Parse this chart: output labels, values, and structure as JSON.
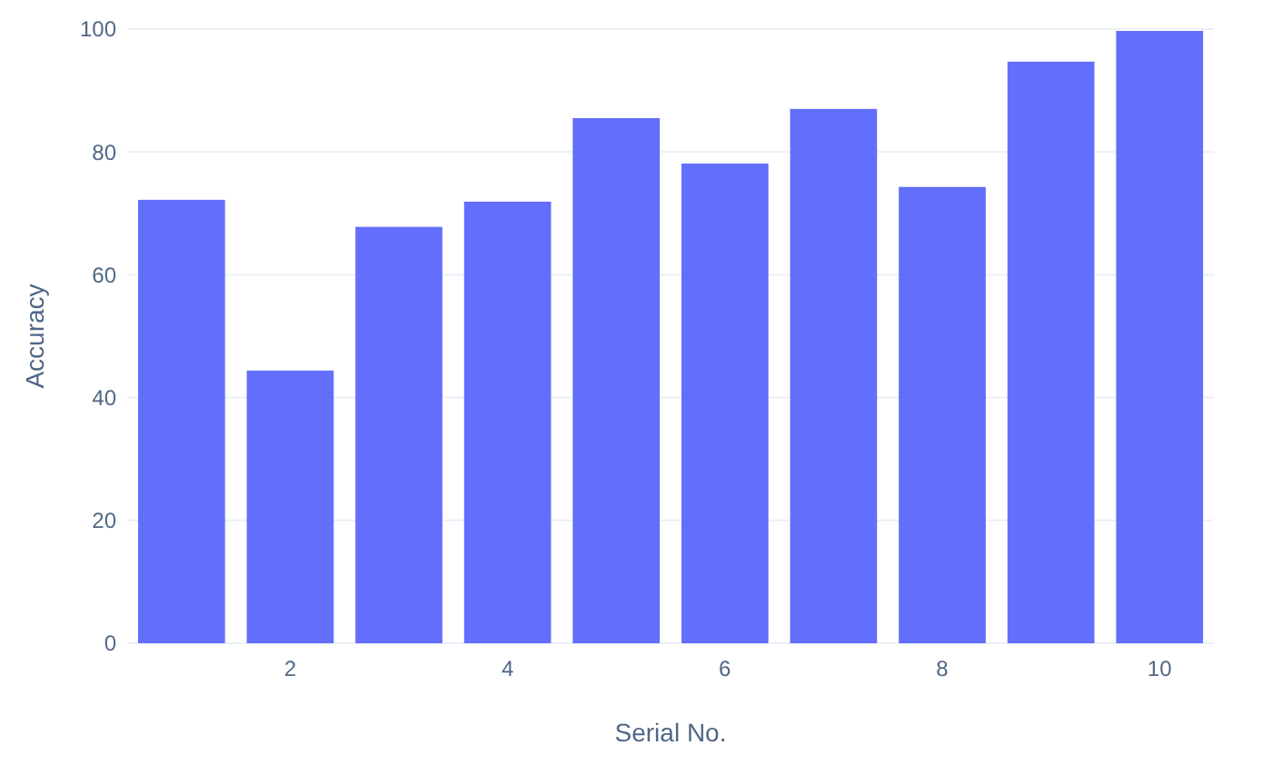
{
  "chart_data": {
    "type": "bar",
    "xlabel": "Serial No.",
    "ylabel": "Accuracy",
    "x": [
      1,
      2,
      3,
      4,
      5,
      6,
      7,
      8,
      9,
      10
    ],
    "values": [
      72.2,
      44.4,
      67.8,
      71.9,
      85.5,
      78.1,
      87,
      74.3,
      94.7,
      99.7
    ],
    "color": "#636efa",
    "xlim": [
      0.5,
      10.5
    ],
    "xticks": [
      2,
      4,
      6,
      8,
      10
    ],
    "ylim": [
      0,
      100
    ],
    "yticks": [
      0,
      20,
      40,
      60,
      80,
      100
    ],
    "grid": "y"
  }
}
